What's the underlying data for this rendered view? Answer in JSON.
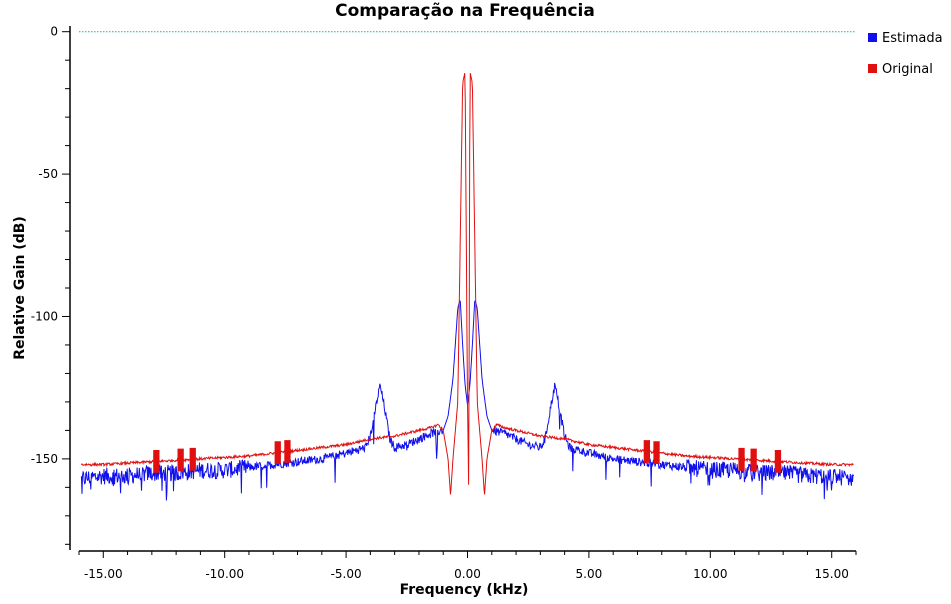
{
  "chart_data": {
    "type": "line",
    "title": "Comparação na Frequência",
    "xlabel": "Frequency (kHz)",
    "ylabel": "Relative Gain (dB)",
    "xlim": [
      -16,
      16
    ],
    "ylim": [
      -182,
      2
    ],
    "x_ticks": [
      -15,
      -10,
      -5,
      0,
      5,
      10,
      15
    ],
    "x_tick_labels": [
      "-15.00",
      "-10.00",
      "-5.00",
      "0.00",
      "5.00",
      "10.00",
      "15.00"
    ],
    "y_ticks": [
      0,
      -50,
      -100,
      -150
    ],
    "y_tick_labels": [
      "0",
      "-50",
      "-100",
      "-150"
    ],
    "grid": false,
    "legend_position": "top-right",
    "reference_line": {
      "y": 0,
      "color": "#2aa0a8",
      "style": "dotted"
    },
    "series": [
      {
        "name": "Estimada",
        "color": "#1010ee",
        "points": [
          [
            -15.9,
            -157
          ],
          [
            -15.0,
            -156
          ],
          [
            -14.0,
            -156
          ],
          [
            -13.0,
            -155
          ],
          [
            -12.0,
            -155
          ],
          [
            -11.0,
            -154
          ],
          [
            -10.0,
            -154
          ],
          [
            -9.0,
            -153
          ],
          [
            -8.0,
            -152
          ],
          [
            -7.0,
            -151
          ],
          [
            -6.0,
            -150
          ],
          [
            -5.0,
            -148
          ],
          [
            -4.2,
            -146
          ],
          [
            -4.0,
            -142
          ],
          [
            -3.8,
            -133
          ],
          [
            -3.6,
            -124
          ],
          [
            -3.4,
            -133
          ],
          [
            -3.2,
            -143
          ],
          [
            -3.0,
            -146
          ],
          [
            -2.5,
            -145
          ],
          [
            -2.0,
            -143
          ],
          [
            -1.5,
            -141
          ],
          [
            -1.0,
            -140
          ],
          [
            -0.8,
            -135
          ],
          [
            -0.6,
            -122
          ],
          [
            -0.4,
            -97
          ],
          [
            -0.3,
            -94
          ],
          [
            -0.2,
            -110
          ],
          [
            -0.1,
            -124
          ],
          [
            0.0,
            -131
          ],
          [
            0.1,
            -124
          ],
          [
            0.2,
            -110
          ],
          [
            0.3,
            -94
          ],
          [
            0.4,
            -97
          ],
          [
            0.6,
            -122
          ],
          [
            0.8,
            -135
          ],
          [
            1.0,
            -140
          ],
          [
            1.5,
            -141
          ],
          [
            2.0,
            -143
          ],
          [
            2.5,
            -145
          ],
          [
            3.0,
            -146
          ],
          [
            3.2,
            -143
          ],
          [
            3.4,
            -133
          ],
          [
            3.6,
            -124
          ],
          [
            3.8,
            -133
          ],
          [
            4.0,
            -142
          ],
          [
            4.2,
            -146
          ],
          [
            5.0,
            -148
          ],
          [
            6.0,
            -150
          ],
          [
            7.0,
            -151
          ],
          [
            8.0,
            -152
          ],
          [
            9.0,
            -153
          ],
          [
            10.0,
            -154
          ],
          [
            11.0,
            -154
          ],
          [
            12.0,
            -155
          ],
          [
            13.0,
            -155
          ],
          [
            14.0,
            -156
          ],
          [
            15.0,
            -156
          ],
          [
            15.9,
            -157
          ]
        ]
      },
      {
        "name": "Original",
        "color": "#e01010",
        "points": [
          [
            -15.9,
            -152
          ],
          [
            -15.0,
            -152
          ],
          [
            -14.0,
            -151.5
          ],
          [
            -13.0,
            -151
          ],
          [
            -12.0,
            -150.5
          ],
          [
            -11.0,
            -150
          ],
          [
            -10.0,
            -149.5
          ],
          [
            -9.0,
            -149
          ],
          [
            -8.0,
            -148
          ],
          [
            -7.0,
            -147
          ],
          [
            -6.0,
            -146
          ],
          [
            -5.0,
            -145
          ],
          [
            -4.0,
            -143
          ],
          [
            -3.0,
            -142
          ],
          [
            -2.0,
            -140
          ],
          [
            -1.5,
            -139
          ],
          [
            -1.2,
            -138
          ],
          [
            -1.0,
            -140
          ],
          [
            -0.8,
            -150
          ],
          [
            -0.7,
            -163
          ],
          [
            -0.6,
            -150
          ],
          [
            -0.4,
            -130
          ],
          [
            -0.2,
            -18
          ],
          [
            -0.1,
            -14
          ],
          [
            0.0,
            -130
          ],
          [
            0.05,
            -162
          ],
          [
            0.1,
            -14
          ],
          [
            0.2,
            -18
          ],
          [
            0.4,
            -130
          ],
          [
            0.6,
            -150
          ],
          [
            0.7,
            -163
          ],
          [
            0.8,
            -150
          ],
          [
            1.0,
            -140
          ],
          [
            1.2,
            -138
          ],
          [
            1.5,
            -139
          ],
          [
            2.0,
            -140
          ],
          [
            3.0,
            -142
          ],
          [
            4.0,
            -143
          ],
          [
            5.0,
            -145
          ],
          [
            6.0,
            -146
          ],
          [
            7.0,
            -147
          ],
          [
            8.0,
            -148
          ],
          [
            9.0,
            -149
          ],
          [
            10.0,
            -149.5
          ],
          [
            11.0,
            -150
          ],
          [
            12.0,
            -150.5
          ],
          [
            13.0,
            -151
          ],
          [
            14.0,
            -151.5
          ],
          [
            15.0,
            -152
          ],
          [
            15.9,
            -152
          ]
        ]
      }
    ]
  }
}
